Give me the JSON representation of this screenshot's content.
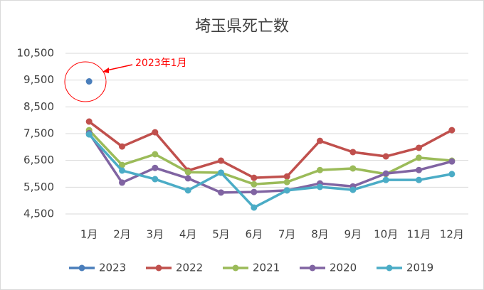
{
  "chart_data": {
    "type": "line",
    "title": "埼玉県死亡数",
    "categories": [
      "1月",
      "2月",
      "3月",
      "4月",
      "5月",
      "6月",
      "7月",
      "8月",
      "9月",
      "10月",
      "11月",
      "12月"
    ],
    "series": [
      {
        "name": "2023",
        "color": "#4a7ebb",
        "values": [
          9450,
          null,
          null,
          null,
          null,
          null,
          null,
          null,
          null,
          null,
          null,
          null
        ]
      },
      {
        "name": "2022",
        "color": "#c0504d",
        "values": [
          7950,
          7020,
          7550,
          6120,
          6490,
          5850,
          5900,
          7230,
          6810,
          6650,
          6970,
          7630
        ]
      },
      {
        "name": "2021",
        "color": "#9bbb59",
        "values": [
          7630,
          6330,
          6730,
          6060,
          6040,
          5610,
          5690,
          6140,
          6200,
          5990,
          6600,
          6490
        ]
      },
      {
        "name": "2020",
        "color": "#8064a2",
        "values": [
          7520,
          5670,
          6220,
          5830,
          5300,
          5320,
          5380,
          5640,
          5530,
          6010,
          6140,
          6460
        ]
      },
      {
        "name": "2019",
        "color": "#4bacc6",
        "values": [
          7470,
          6120,
          5800,
          5380,
          6040,
          4740,
          5380,
          5510,
          5400,
          5770,
          5770,
          5990
        ]
      }
    ],
    "ylim": [
      4500,
      10500
    ],
    "yticks": [
      {
        "value": 4500,
        "label": "4,500"
      },
      {
        "value": 5500,
        "label": "5,500"
      },
      {
        "value": 6500,
        "label": "6,500"
      },
      {
        "value": 7500,
        "label": "7,500"
      },
      {
        "value": 8500,
        "label": "8,500"
      },
      {
        "value": 9500,
        "label": "9,500"
      },
      {
        "value": 10500,
        "label": "10,500"
      }
    ],
    "grid": true,
    "legend": "bottom",
    "annotation": "2023年1月"
  }
}
